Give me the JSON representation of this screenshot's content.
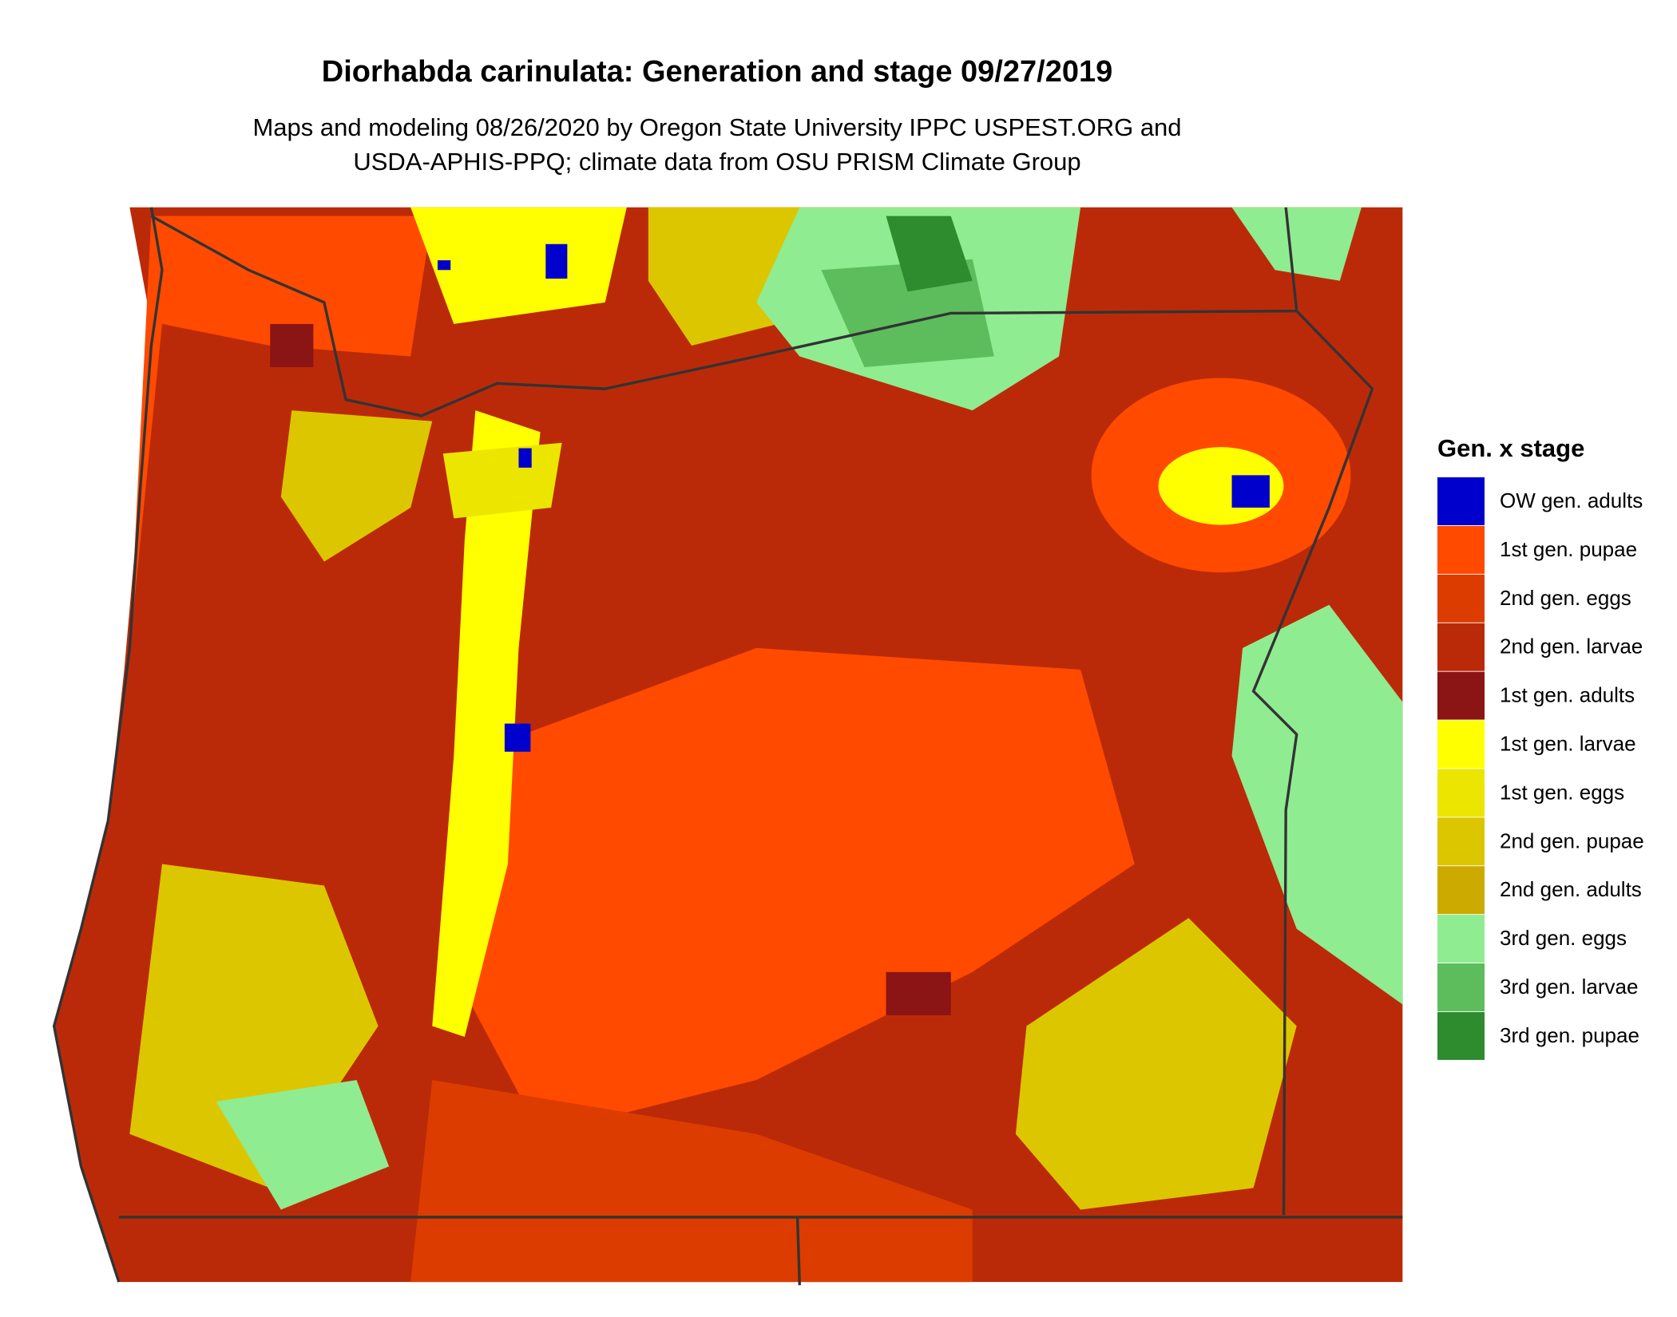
{
  "header": {
    "title": "Diorhabda carinulata: Generation and stage 09/27/2019",
    "subtitle_lines": [
      "Maps and modeling 08/26/2020 by Oregon State University IPPC USPEST.ORG and",
      "USDA-APHIS-PPQ; climate data from OSU PRISM Climate Group"
    ]
  },
  "legend": {
    "title": "Gen. x stage",
    "items": [
      {
        "label": "OW gen. adults",
        "color": "#0000cc"
      },
      {
        "label": "1st gen. pupae",
        "color": "#ff4a00"
      },
      {
        "label": "2nd gen. eggs",
        "color": "#dc3c00"
      },
      {
        "label": "2nd gen. larvae",
        "color": "#bb2a08"
      },
      {
        "label": "1st gen. adults",
        "color": "#8b1414"
      },
      {
        "label": "1st gen. larvae",
        "color": "#ffff00"
      },
      {
        "label": "1st gen. eggs",
        "color": "#ebe500"
      },
      {
        "label": "2nd gen. pupae",
        "color": "#dcc600"
      },
      {
        "label": "2nd gen. adults",
        "color": "#ccaa00"
      },
      {
        "label": "3rd gen. eggs",
        "color": "#90ec90"
      },
      {
        "label": "3rd gen. larvae",
        "color": "#5dbd5d"
      },
      {
        "label": "3rd gen. pupae",
        "color": "#2e8b2e"
      }
    ]
  }
}
